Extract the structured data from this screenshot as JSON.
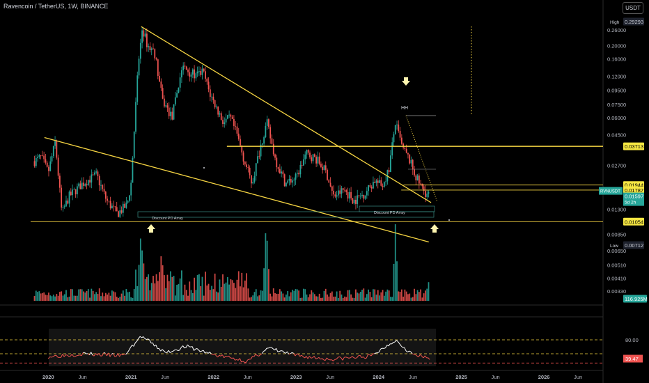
{
  "header": {
    "title": "Ravencoin / TetherUS, 1W, BINANCE",
    "currency": "USDT"
  },
  "colors": {
    "up": "#26a69a",
    "down": "#ef5350",
    "trendline": "#f5d442",
    "level": "#f5d442",
    "rsi_line": "#ffffff",
    "rsi_band": "#ef5350",
    "grid": "#121212"
  },
  "price_scale": {
    "ticks": [
      "0.26000",
      "0.20000",
      "0.16000",
      "0.12000",
      "0.09500",
      "0.07500",
      "0.06000",
      "0.04500",
      "0.02700",
      "0.01300",
      "0.00850",
      "0.00650",
      "0.00510",
      "0.00410",
      "0.00330"
    ],
    "tags": {
      "high": {
        "label": "High",
        "value": "0.29293"
      },
      "low": {
        "label": "Low",
        "value": "0.00712"
      },
      "levels": [
        "0.03713",
        "0.01944",
        "0.01787",
        "0.01054"
      ],
      "symbol": "RVNUSDT",
      "last": "0.01597",
      "countdown": "5d 2h",
      "volume": "116.925M"
    }
  },
  "time_axis": [
    "2020",
    "Jun",
    "2021",
    "Jun",
    "2022",
    "Jun",
    "2023",
    "Jun",
    "2024",
    "Jun",
    "2025",
    "Jun",
    "2026",
    "Jun"
  ],
  "annotations": {
    "hh": "HH",
    "discount_left": "Discount PD Array",
    "discount_right": "Discount PD Array"
  },
  "rsi_scale": {
    "upper": "80.00",
    "value": "39.47"
  },
  "chart_data": {
    "type": "candlestick",
    "title": "Ravencoin / TetherUS, 1W, BINANCE",
    "interval": "1W",
    "y_scale": "log",
    "ylim": [
      0.0031,
      0.3
    ],
    "xlim": [
      "2019-10-15",
      "2026-09-01"
    ],
    "high": 0.29293,
    "low": 0.00712,
    "last": 0.01597,
    "price_series": [
      {
        "date": "2019-11-01",
        "price": 0.029
      },
      {
        "date": "2019-12-01",
        "price": 0.031
      },
      {
        "date": "2020-01-01",
        "price": 0.024
      },
      {
        "date": "2020-02-01",
        "price": 0.04
      },
      {
        "date": "2020-03-01",
        "price": 0.012
      },
      {
        "date": "2020-04-01",
        "price": 0.016
      },
      {
        "date": "2020-06-01",
        "price": 0.02
      },
      {
        "date": "2020-08-01",
        "price": 0.023
      },
      {
        "date": "2020-09-15",
        "price": 0.015
      },
      {
        "date": "2020-11-01",
        "price": 0.012
      },
      {
        "date": "2020-12-15",
        "price": 0.014
      },
      {
        "date": "2021-01-01",
        "price": 0.02
      },
      {
        "date": "2021-02-01",
        "price": 0.14
      },
      {
        "date": "2021-02-20",
        "price": 0.27
      },
      {
        "date": "2021-03-15",
        "price": 0.2
      },
      {
        "date": "2021-04-15",
        "price": 0.18
      },
      {
        "date": "2021-05-20",
        "price": 0.08
      },
      {
        "date": "2021-07-01",
        "price": 0.06
      },
      {
        "date": "2021-08-15",
        "price": 0.14
      },
      {
        "date": "2021-09-15",
        "price": 0.13
      },
      {
        "date": "2021-10-15",
        "price": 0.12
      },
      {
        "date": "2021-11-15",
        "price": 0.13
      },
      {
        "date": "2021-12-15",
        "price": 0.09
      },
      {
        "date": "2022-01-15",
        "price": 0.07
      },
      {
        "date": "2022-02-15",
        "price": 0.055
      },
      {
        "date": "2022-03-15",
        "price": 0.06
      },
      {
        "date": "2022-04-15",
        "price": 0.045
      },
      {
        "date": "2022-05-15",
        "price": 0.03
      },
      {
        "date": "2022-06-20",
        "price": 0.02
      },
      {
        "date": "2022-08-01",
        "price": 0.04
      },
      {
        "date": "2022-08-25",
        "price": 0.055
      },
      {
        "date": "2022-10-01",
        "price": 0.03
      },
      {
        "date": "2022-11-15",
        "price": 0.02
      },
      {
        "date": "2023-01-01",
        "price": 0.022
      },
      {
        "date": "2023-02-15",
        "price": 0.033
      },
      {
        "date": "2023-04-01",
        "price": 0.03
      },
      {
        "date": "2023-05-15",
        "price": 0.024
      },
      {
        "date": "2023-06-15",
        "price": 0.016
      },
      {
        "date": "2023-08-01",
        "price": 0.018
      },
      {
        "date": "2023-09-15",
        "price": 0.015
      },
      {
        "date": "2023-11-01",
        "price": 0.017
      },
      {
        "date": "2023-12-15",
        "price": 0.021
      },
      {
        "date": "2024-01-15",
        "price": 0.019
      },
      {
        "date": "2024-02-15",
        "price": 0.025
      },
      {
        "date": "2024-03-15",
        "price": 0.055
      },
      {
        "date": "2024-04-15",
        "price": 0.036
      },
      {
        "date": "2024-05-15",
        "price": 0.03
      },
      {
        "date": "2024-06-15",
        "price": 0.022
      },
      {
        "date": "2024-07-15",
        "price": 0.018
      },
      {
        "date": "2024-08-15",
        "price": 0.016
      }
    ],
    "volume_series": [
      {
        "date": "2021-02-15",
        "volume": 0.55
      },
      {
        "date": "2021-05-20",
        "volume": 0.35
      },
      {
        "date": "2022-08-25",
        "volume": 1.0
      },
      {
        "date": "2024-03-15",
        "volume": 1.25
      },
      {
        "date": "2024-08-15",
        "volume": 0.12
      }
    ],
    "levels": [
      0.03713,
      0.01944,
      0.01787,
      0.01054
    ],
    "trendlines": [
      {
        "from": {
          "date": "2021-02-15",
          "price": 0.275
        },
        "to": {
          "date": "2024-08-20",
          "price": 0.0145
        }
      },
      {
        "from": {
          "date": "2019-12-15",
          "price": 0.043
        },
        "to": {
          "date": "2024-08-10",
          "price": 0.0075
        }
      }
    ],
    "rsi": {
      "value": 39.47,
      "upper": 80,
      "series": [
        {
          "date": "2020-01-01",
          "rsi": 44
        },
        {
          "date": "2020-06-01",
          "rsi": 50
        },
        {
          "date": "2020-12-01",
          "rsi": 46
        },
        {
          "date": "2021-02-15",
          "rsi": 88
        },
        {
          "date": "2021-06-01",
          "rsi": 52
        },
        {
          "date": "2021-09-01",
          "rsi": 66
        },
        {
          "date": "2022-01-01",
          "rsi": 48
        },
        {
          "date": "2022-06-01",
          "rsi": 34
        },
        {
          "date": "2022-09-01",
          "rsi": 62
        },
        {
          "date": "2023-01-01",
          "rsi": 46
        },
        {
          "date": "2023-06-01",
          "rsi": 38
        },
        {
          "date": "2023-12-01",
          "rsi": 45
        },
        {
          "date": "2024-03-15",
          "rsi": 80
        },
        {
          "date": "2024-06-01",
          "rsi": 48
        },
        {
          "date": "2024-08-15",
          "rsi": 39
        }
      ]
    }
  }
}
